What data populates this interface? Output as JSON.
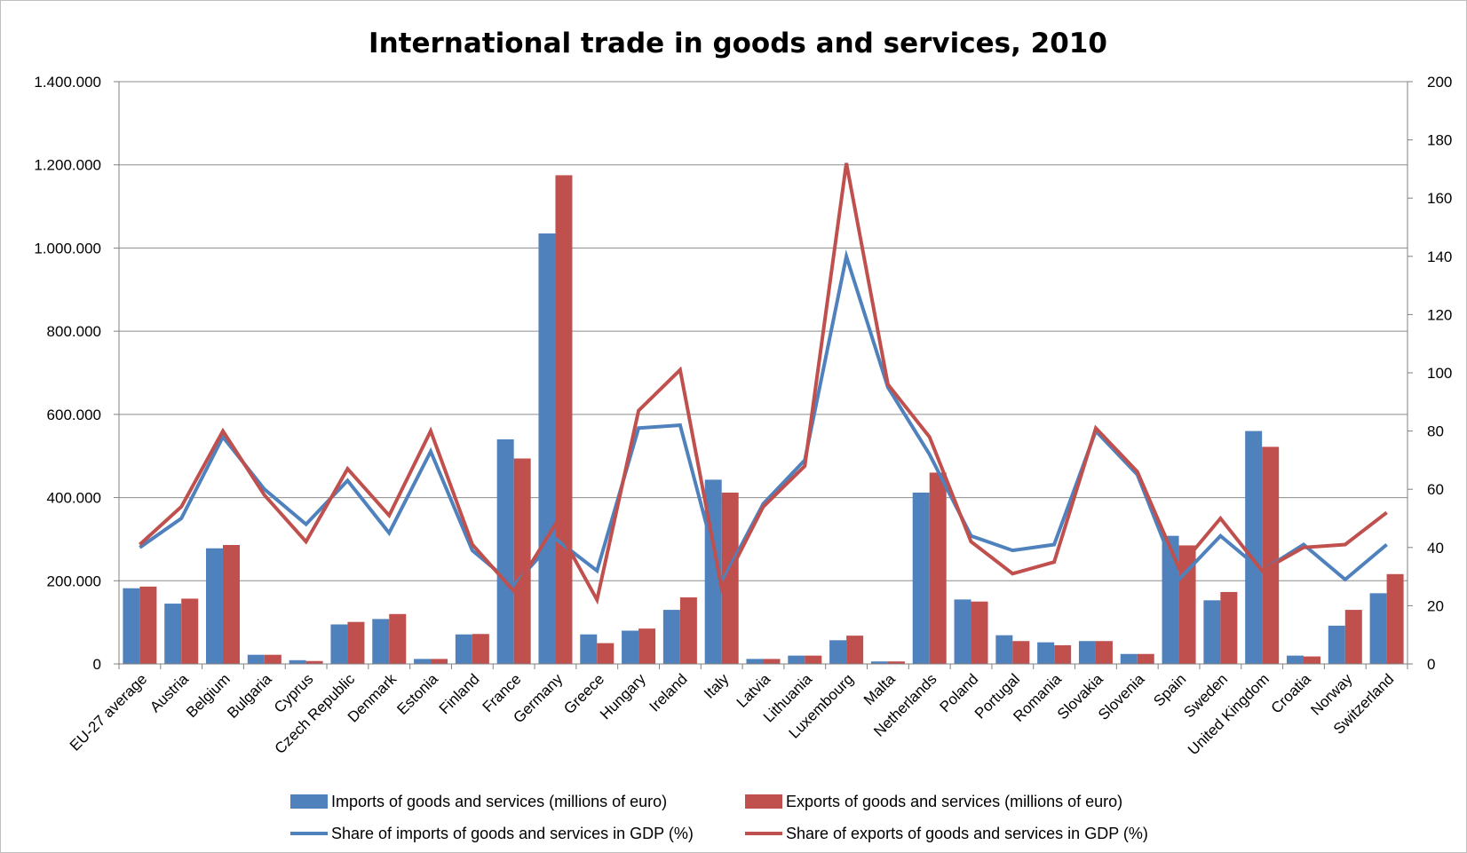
{
  "chart_data": {
    "type": "bar",
    "title": "International trade in goods and services, 2010",
    "categories": [
      "EU-27 average",
      "Austria",
      "Belgium",
      "Bulgaria",
      "Cyprus",
      "Czech Republic",
      "Denmark",
      "Estonia",
      "Finland",
      "France",
      "Germany",
      "Greece",
      "Hungary",
      "Ireland",
      "Italy",
      "Latvia",
      "Lithuania",
      "Luxembourg",
      "Malta",
      "Netherlands",
      "Poland",
      "Portugal",
      "Romania",
      "Slovakia",
      "Slovenia",
      "Spain",
      "Sweden",
      "United Kingdom",
      "Croatia",
      "Norway",
      "Switzerland"
    ],
    "y_left": {
      "ylim": [
        0,
        1400000
      ],
      "ticks": [
        0,
        200000,
        400000,
        600000,
        800000,
        1000000,
        1200000,
        1400000
      ],
      "tick_labels": [
        "0",
        "200.000",
        "400.000",
        "600.000",
        "800.000",
        "1.000.000",
        "1.200.000",
        "1.400.000"
      ]
    },
    "y_right": {
      "ylim": [
        0,
        200
      ],
      "ticks": [
        0,
        20,
        40,
        60,
        80,
        100,
        120,
        140,
        160,
        180,
        200
      ],
      "tick_labels": [
        "0",
        "20",
        "40",
        "60",
        "80",
        "100",
        "120",
        "140",
        "160",
        "180",
        "200"
      ]
    },
    "grid": "horizontal",
    "legend_position": "bottom",
    "series": [
      {
        "name": "Imports of goods and services (millions of euro)",
        "kind": "bar",
        "axis": "left",
        "color": "#4f81bd",
        "values": [
          182000,
          145000,
          278000,
          22000,
          9000,
          95000,
          108000,
          12000,
          71000,
          540000,
          1035000,
          71000,
          80000,
          130000,
          443000,
          12000,
          20000,
          57000,
          6000,
          412000,
          155000,
          69000,
          52000,
          55000,
          24000,
          308000,
          153000,
          560000,
          20000,
          92000,
          170000
        ]
      },
      {
        "name": "Exports of goods and services (millions of euro)",
        "kind": "bar",
        "axis": "left",
        "color": "#c0504d",
        "values": [
          186000,
          157000,
          286000,
          22000,
          7000,
          101000,
          120000,
          12000,
          72000,
          494000,
          1175000,
          50000,
          85000,
          160000,
          412000,
          12000,
          20000,
          68000,
          6000,
          460000,
          150000,
          55000,
          45000,
          55000,
          24000,
          285000,
          173000,
          522000,
          18000,
          130000,
          216000
        ]
      },
      {
        "name": "Share of imports of goods and services  in GDP (%)",
        "kind": "line",
        "axis": "right",
        "color": "#4f81bd",
        "values": [
          40,
          50,
          78,
          60,
          48,
          63,
          45,
          73,
          39,
          27,
          43,
          32,
          81,
          82,
          28,
          55,
          70,
          140,
          95,
          72,
          44,
          39,
          41,
          80,
          65,
          29,
          44,
          32,
          41,
          29,
          41
        ]
      },
      {
        "name": "Share of exports of goods and services  in GDP (%)",
        "kind": "line",
        "axis": "right",
        "color": "#c0504d",
        "values": [
          41,
          54,
          80,
          58,
          42,
          67,
          51,
          80,
          41,
          25,
          48,
          22,
          87,
          101,
          26,
          54,
          68,
          172,
          96,
          78,
          42,
          31,
          35,
          81,
          66,
          33,
          50,
          32,
          40,
          41,
          52
        ]
      }
    ]
  }
}
